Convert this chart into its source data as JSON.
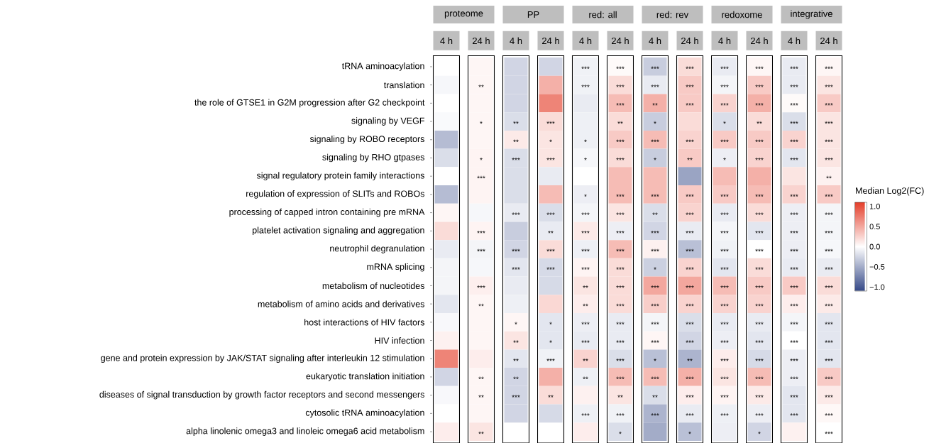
{
  "chart_data": {
    "type": "heatmap",
    "annotations": [
      "proteome",
      "PP",
      "red: all",
      "red: rev",
      "redoxome",
      "integrative"
    ],
    "categories": [
      "4 h",
      "24 h",
      "4 h",
      "24 h",
      "4 h",
      "24 h",
      "4 h",
      "24 h",
      "4 h",
      "24 h",
      "4 h",
      "24 h"
    ],
    "y_categories": [
      "tRNA aminoacylation",
      "translation",
      "the role of GTSE1 in G2M progression after G2 checkpoint",
      "signaling by VEGF",
      "signaling by ROBO receptors",
      "signaling by RHO gtpases",
      "signal regulatory protein family interactions",
      "regulation of expression of SLITs and ROBOs",
      "processing of capped intron containing pre mRNA",
      "platelet activation signaling and aggregation",
      "neutrophil degranulation",
      "mRNA splicing",
      "metabolism of nucleotides",
      "metabolism of amino acids and derivatives",
      "host interactions of HIV factors",
      "HIV infection",
      "gene and protein expression by JAK/STAT signaling after interleukin 12 stimulation",
      "eukaryotic translation initiation",
      "diseases of signal transduction by growth factor receptors and second messengers",
      "cytosolic tRNA aminoacylation",
      "alpha linolenic omega3 and linoleic omega6 acid metabolism"
    ],
    "cells": [
      [
        0,
        0.05,
        -0.25,
        -0.25,
        -0.08,
        0.03,
        -0.3,
        0.2,
        -0.12,
        0.05,
        -0.12,
        0.05
      ],
      [
        -0.05,
        0.05,
        -0.25,
        0.45,
        -0.08,
        0.2,
        -0.12,
        0.3,
        -0.06,
        0.3,
        -0.12,
        0.15
      ],
      [
        0,
        0.05,
        -0.25,
        0.7,
        -0.12,
        0.38,
        0.45,
        0.3,
        0.25,
        0.45,
        0.03,
        0.3
      ],
      [
        -0.03,
        0.05,
        -0.2,
        0.2,
        -0.09,
        0.2,
        -0.3,
        0.2,
        -0.2,
        0.2,
        -0.2,
        0.15
      ],
      [
        -0.4,
        0.05,
        0.12,
        0.15,
        -0.09,
        0.3,
        0.38,
        0.25,
        0.3,
        0.3,
        0.25,
        0.15
      ],
      [
        -0.2,
        0.06,
        -0.2,
        0.15,
        -0.05,
        0.2,
        -0.3,
        0.3,
        -0.1,
        0.25,
        -0.15,
        0.15
      ],
      [
        0,
        0.06,
        -0.2,
        -0.12,
        null,
        0.38,
        0.38,
        -0.55,
        0.38,
        0.45,
        0.15,
        0.08
      ],
      [
        -0.4,
        0.06,
        -0.2,
        0.38,
        -0.1,
        0.38,
        0.38,
        0.3,
        0.3,
        0.38,
        0.25,
        0.3
      ],
      [
        0.05,
        -0.05,
        -0.12,
        -0.2,
        -0.06,
        0.15,
        -0.2,
        0.25,
        -0.12,
        0.2,
        -0.1,
        -0.06
      ],
      [
        0.2,
        0.06,
        -0.3,
        -0.12,
        0.12,
        -0.1,
        -0.25,
        -0.12,
        -0.06,
        -0.15,
        -0.1,
        -0.06
      ],
      [
        -0.12,
        -0.06,
        -0.25,
        0.2,
        -0.09,
        0.38,
        0.08,
        -0.38,
        -0.08,
        0,
        -0.1,
        -0.05
      ],
      [
        -0.06,
        -0.05,
        -0.15,
        -0.22,
        0.06,
        0.2,
        -0.28,
        0.25,
        -0.15,
        0.2,
        -0.12,
        -0.12
      ],
      [
        -0.06,
        0.09,
        -0.12,
        -0.22,
        0.15,
        0.2,
        0.5,
        0.5,
        0.38,
        0.3,
        0.3,
        0.2
      ],
      [
        -0.15,
        0.05,
        -0.09,
        0.22,
        0.1,
        0.2,
        0.28,
        0.25,
        0.25,
        0.25,
        0.1,
        0.12
      ],
      [
        -0.04,
        0.05,
        0.05,
        -0.15,
        -0.1,
        -0.12,
        -0.06,
        -0.2,
        -0.12,
        -0.12,
        -0.06,
        -0.15
      ],
      [
        0.08,
        0.05,
        0.15,
        -0.15,
        -0.12,
        -0.12,
        0.05,
        -0.25,
        -0.1,
        -0.15,
        0,
        -0.15
      ],
      [
        0.7,
        0.1,
        -0.15,
        -0.08,
        0.25,
        -0.2,
        -0.38,
        -0.45,
        0.1,
        -0.22,
        -0.1,
        -0.15
      ],
      [
        -0.25,
        0.05,
        -0.25,
        0.45,
        -0.09,
        0.38,
        0.38,
        0.45,
        0.15,
        0.38,
        -0.1,
        0.3
      ],
      [
        -0.04,
        0.05,
        -0.25,
        0.2,
        0.08,
        0.15,
        -0.2,
        0.1,
        0.06,
        0.12,
        -0.15,
        0.12
      ],
      [
        0,
        0.05,
        -0.25,
        -0.22,
        -0.09,
        -0.08,
        -0.45,
        -0.12,
        -0.09,
        -0.1,
        -0.15,
        0.04
      ],
      [
        0.1,
        0.15,
        null,
        null,
        0.1,
        -0.2,
        -0.5,
        -0.38,
        -0.1,
        -0.25,
        0.08,
        0
      ]
    ],
    "cell_labels": [
      [
        null,
        null,
        null,
        null,
        "***",
        "***",
        "***",
        "***",
        "***",
        "***",
        "***",
        "***"
      ],
      [
        null,
        "**",
        null,
        null,
        "***",
        "***",
        "***",
        "***",
        "***",
        "***",
        "***",
        "***"
      ],
      [
        null,
        null,
        null,
        null,
        null,
        "***",
        "**",
        "***",
        "***",
        "***",
        "***",
        "***"
      ],
      [
        null,
        "*",
        "**",
        "***",
        null,
        "**",
        "*",
        null,
        "*",
        "**",
        "***",
        "***"
      ],
      [
        null,
        null,
        "**",
        "*",
        "*",
        "***",
        "***",
        "***",
        "***",
        "***",
        "***",
        "***"
      ],
      [
        null,
        "*",
        "***",
        "***",
        "*",
        "***",
        "*",
        "**",
        "*",
        "***",
        "***",
        "***"
      ],
      [
        null,
        "***",
        null,
        null,
        null,
        null,
        null,
        null,
        null,
        null,
        null,
        "**"
      ],
      [
        null,
        null,
        null,
        null,
        "*",
        "***",
        "***",
        "***",
        "***",
        "***",
        "***",
        "***"
      ],
      [
        null,
        null,
        "***",
        "***",
        "***",
        "***",
        "**",
        "***",
        "***",
        "***",
        "***",
        "***"
      ],
      [
        null,
        "***",
        null,
        "**",
        "***",
        "***",
        "***",
        "***",
        "***",
        "***",
        "***",
        "***"
      ],
      [
        null,
        "***",
        "***",
        "***",
        "***",
        "***",
        "***",
        "***",
        "***",
        "***",
        "***",
        "***"
      ],
      [
        null,
        null,
        "***",
        "***",
        "***",
        "***",
        "*",
        "***",
        "***",
        "***",
        "***",
        "***"
      ],
      [
        null,
        "***",
        null,
        null,
        "**",
        "***",
        "***",
        "***",
        "***",
        "***",
        "***",
        "***"
      ],
      [
        null,
        "**",
        null,
        null,
        "**",
        "***",
        "***",
        "***",
        "***",
        "***",
        "***",
        "***"
      ],
      [
        null,
        null,
        "*",
        "*",
        "***",
        "***",
        "***",
        "***",
        "***",
        "***",
        "***",
        "***"
      ],
      [
        null,
        null,
        "**",
        "*",
        "***",
        "***",
        "***",
        "***",
        "***",
        "***",
        "***",
        "***"
      ],
      [
        null,
        null,
        "**",
        "***",
        "**",
        "***",
        "*",
        "**",
        "***",
        "***",
        "***",
        "***"
      ],
      [
        null,
        "**",
        "**",
        null,
        "**",
        "***",
        "***",
        "***",
        "***",
        "***",
        "***",
        "***"
      ],
      [
        null,
        "**",
        "***",
        "**",
        null,
        "**",
        "**",
        "***",
        "***",
        "***",
        "***",
        "***"
      ],
      [
        null,
        null,
        null,
        null,
        "***",
        "***",
        "***",
        "***",
        "***",
        "***",
        "***",
        "***"
      ],
      [
        null,
        "**",
        null,
        null,
        null,
        "*",
        null,
        "*",
        null,
        "*",
        null,
        "***"
      ]
    ],
    "clim": [
      -1.1,
      1.1
    ],
    "clabel": "Median Log2(FC)",
    "cticks": [
      {
        "value": 1,
        "label": "1.0"
      },
      {
        "value": 0.5,
        "label": "0.5"
      },
      {
        "value": 0,
        "label": "0.0"
      },
      {
        "value": -0.5,
        "label": "−0.5"
      },
      {
        "value": -1,
        "label": "−1.0"
      }
    ]
  }
}
